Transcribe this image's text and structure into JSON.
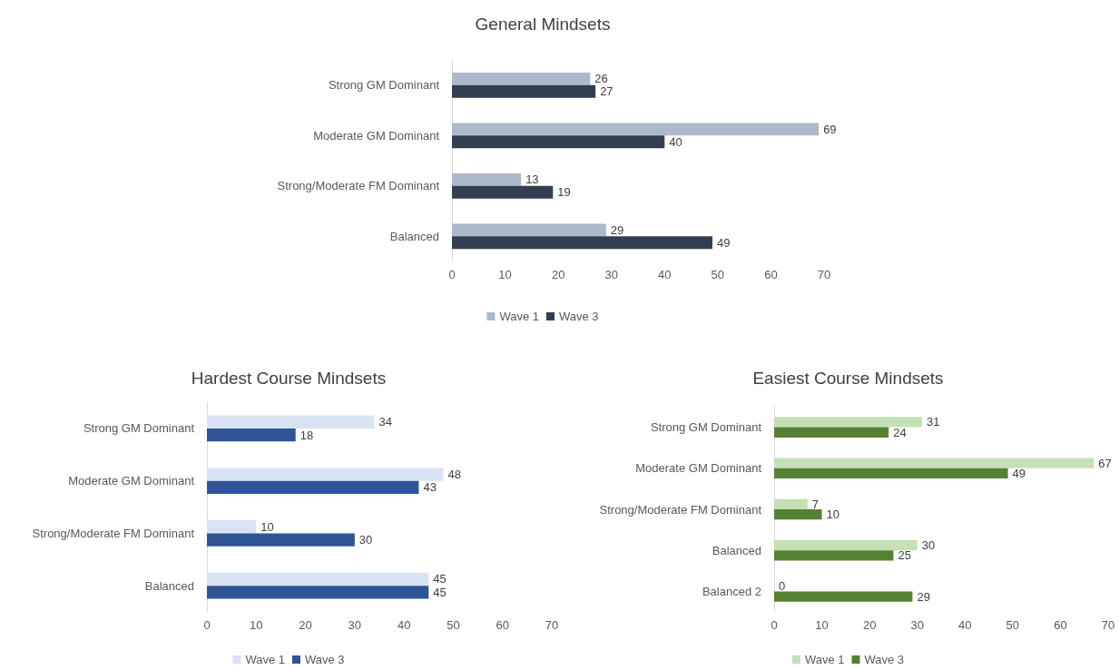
{
  "chart_data": [
    {
      "type": "bar",
      "orientation": "horizontal",
      "title": "General Mindsets",
      "categories": [
        "Strong GM Dominant",
        "Moderate GM Dominant",
        "Strong/Moderate FM Dominant",
        "Balanced"
      ],
      "series": [
        {
          "name": "Wave 1",
          "color": "#adb9ca",
          "values": [
            26,
            69,
            13,
            29
          ]
        },
        {
          "name": "Wave 3",
          "color": "#333f50",
          "values": [
            27,
            40,
            19,
            49
          ]
        }
      ],
      "xlim": [
        0,
        70
      ],
      "xticks": [
        0,
        10,
        20,
        30,
        40,
        50,
        60,
        70
      ],
      "data_labels": true,
      "legend": "bottom",
      "grid": false
    },
    {
      "type": "bar",
      "orientation": "horizontal",
      "title": "Hardest Course Mindsets",
      "categories": [
        "Strong GM Dominant",
        "Moderate GM Dominant",
        "Strong/Moderate FM Dominant",
        "Balanced"
      ],
      "series": [
        {
          "name": "Wave 1",
          "color": "#dae3f3",
          "values": [
            34,
            48,
            10,
            45
          ]
        },
        {
          "name": "Wave 3",
          "color": "#2f5597",
          "values": [
            18,
            43,
            30,
            45
          ]
        }
      ],
      "xlim": [
        0,
        70
      ],
      "xticks": [
        0,
        10,
        20,
        30,
        40,
        50,
        60,
        70
      ],
      "data_labels": true,
      "legend": "bottom",
      "grid": false
    },
    {
      "type": "bar",
      "orientation": "horizontal",
      "title": "Easiest Course Mindsets",
      "categories": [
        "Strong GM Dominant",
        "Moderate GM Dominant",
        "Strong/Moderate FM Dominant",
        "Balanced",
        "Balanced 2"
      ],
      "series": [
        {
          "name": "Wave 1",
          "color": "#c5e0b4",
          "values": [
            31,
            67,
            7,
            30,
            0
          ]
        },
        {
          "name": "Wave 3",
          "color": "#548235",
          "values": [
            24,
            49,
            10,
            25,
            29
          ]
        }
      ],
      "xlim": [
        0,
        70
      ],
      "xticks": [
        0,
        10,
        20,
        30,
        40,
        50,
        60,
        70
      ],
      "data_labels": true,
      "legend": "bottom",
      "grid": false
    }
  ]
}
